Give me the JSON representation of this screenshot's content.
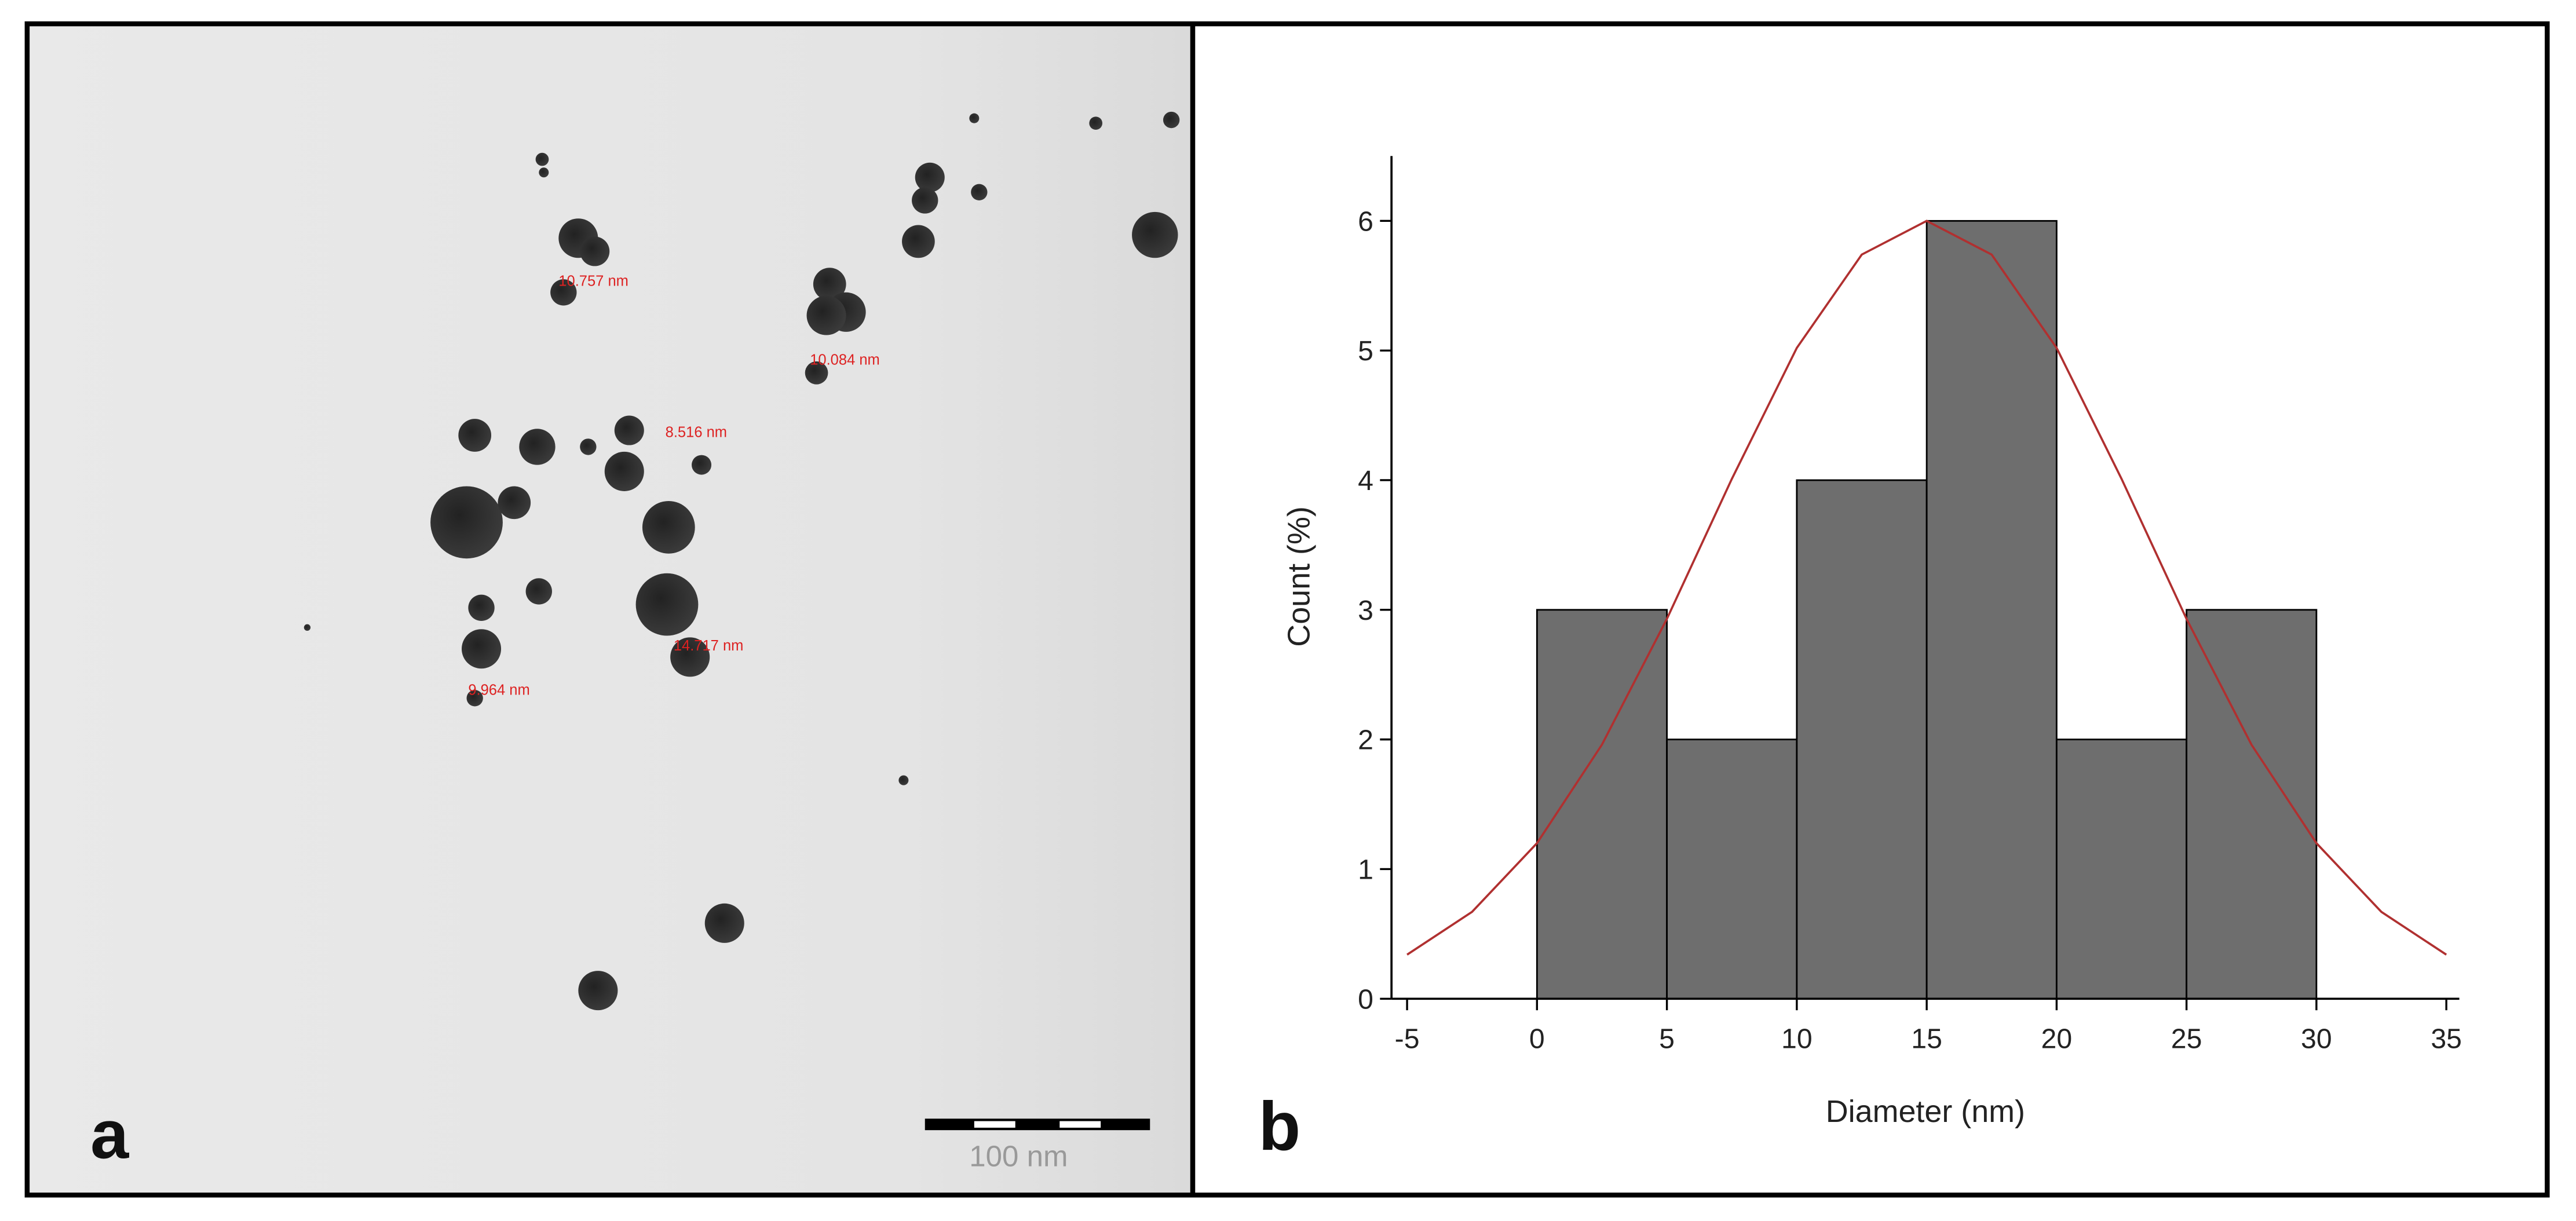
{
  "panel_a": {
    "label": "a",
    "annotations": [
      "10.757 nm",
      "10.084 nm",
      "8.516 nm",
      "14.717 nm",
      "9.964 nm"
    ],
    "scale_bar": "100 nm"
  },
  "panel_b": {
    "label": "b"
  },
  "chart_data": {
    "type": "histogram",
    "x_label": "Diameter (nm)",
    "y_label": "Count (%)",
    "bins": [
      0,
      5,
      10,
      15,
      20,
      25,
      30
    ],
    "values": [
      3,
      2,
      4,
      6,
      2,
      3
    ],
    "color": "#6e6e6e",
    "fit": {
      "color": "#b03030",
      "x": [
        -5,
        -2.5,
        0,
        2.5,
        5,
        7.5,
        10,
        12.5,
        15,
        17.5,
        20,
        22.5,
        25,
        27.5,
        30,
        32.5,
        35
      ],
      "values": [
        0.34,
        0.67,
        1.2,
        1.96,
        2.93,
        4.01,
        5.02,
        5.74,
        6,
        5.74,
        5.02,
        4.01,
        2.93,
        1.96,
        1.2,
        0.67,
        0.34
      ]
    },
    "xlim": [
      -5.6,
      35.5
    ],
    "xticks": [
      -5,
      0,
      5,
      10,
      15,
      20,
      25,
      30,
      35
    ],
    "ylim": [
      0,
      6.5
    ],
    "yticks": [
      0,
      1,
      2,
      3,
      4,
      5,
      6
    ]
  }
}
